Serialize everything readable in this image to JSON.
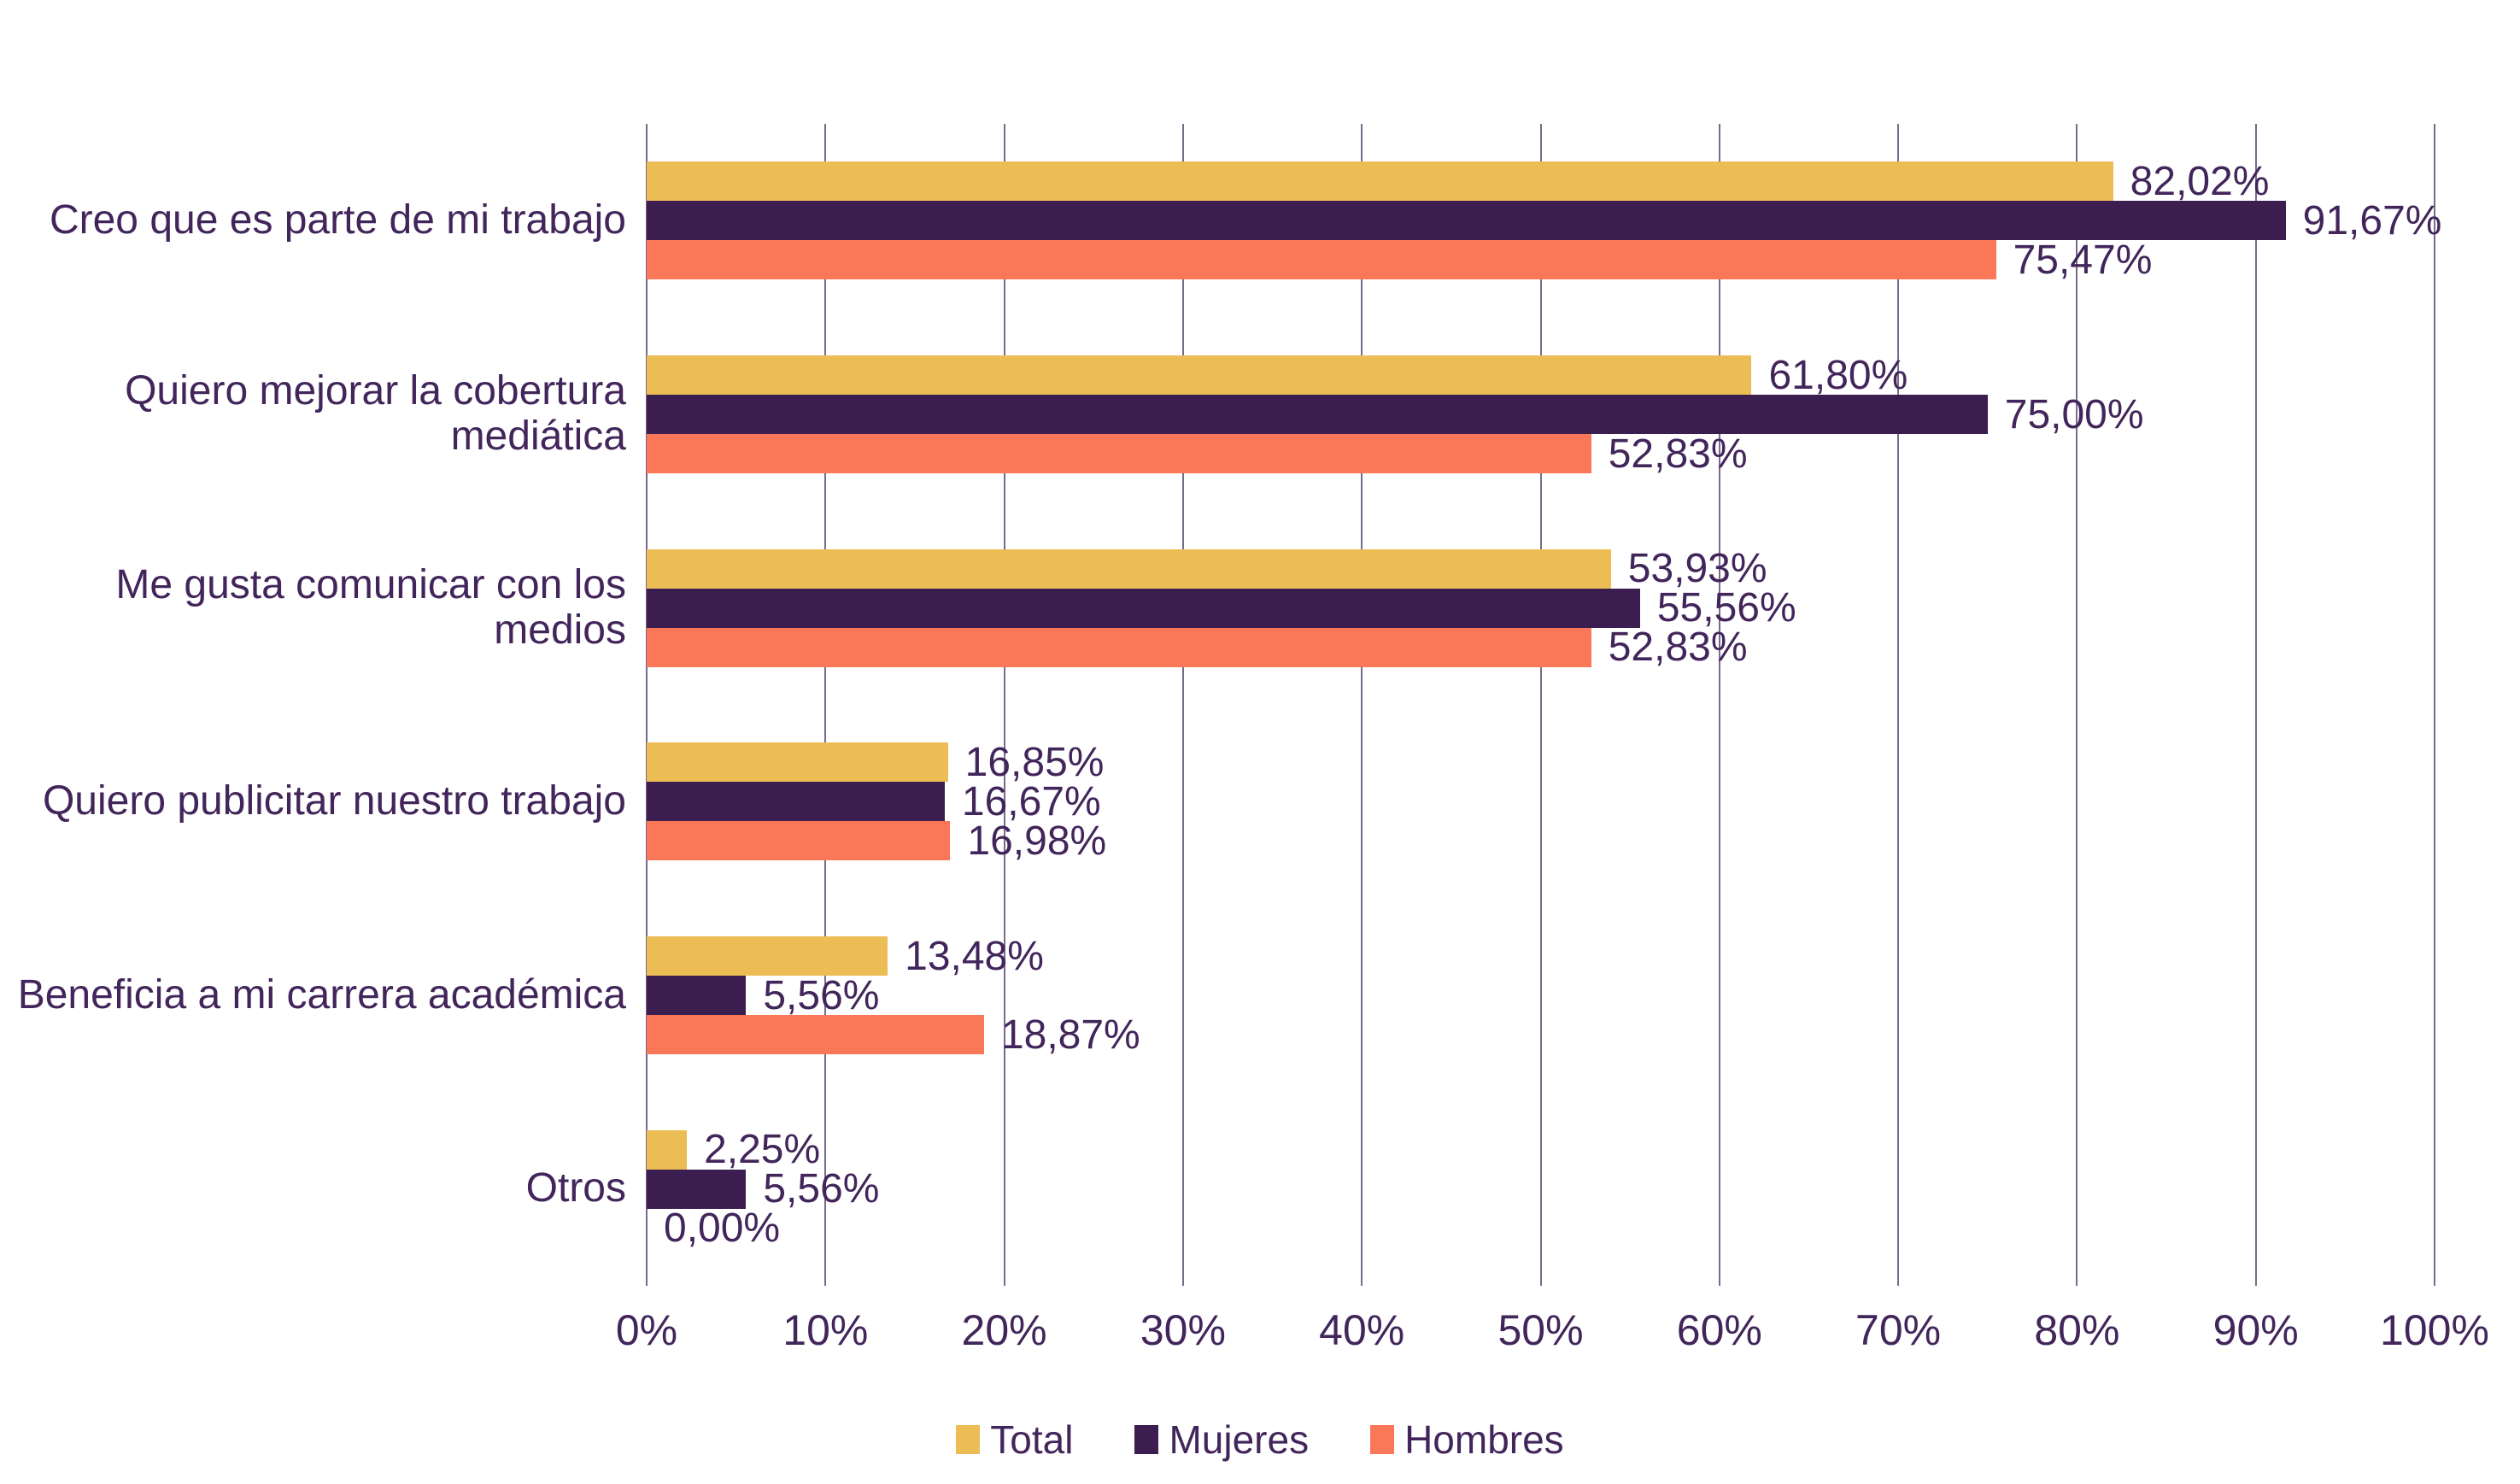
{
  "colors": {
    "total": "#ecbc55",
    "mujeres": "#3b1e4f",
    "hombres": "#fa7757",
    "text": "#42265b",
    "grid": "#5f5078",
    "background": "#ffffff"
  },
  "chart_data": {
    "type": "bar",
    "orientation": "horizontal",
    "title": "",
    "xlabel": "",
    "ylabel": "",
    "xlim": [
      0,
      100
    ],
    "x_tick_labels": [
      "0%",
      "10%",
      "20%",
      "30%",
      "40%",
      "50%",
      "60%",
      "70%",
      "80%",
      "90%",
      "100%"
    ],
    "grid": "vertical",
    "legend_position": "bottom-center",
    "categories": [
      "Creo que es parte de mi trabajo",
      "Quiero mejorar la cobertura mediática",
      "Me gusta comunicar con los medios",
      "Quiero publicitar nuestro trabajo",
      "Beneficia a mi carrera académica",
      "Otros"
    ],
    "series": [
      {
        "name": "Total",
        "color": "#ecbc55",
        "values": [
          82.02,
          61.8,
          53.93,
          16.85,
          13.48,
          2.25
        ]
      },
      {
        "name": "Mujeres",
        "color": "#3b1e4f",
        "values": [
          91.67,
          75.0,
          55.56,
          16.67,
          5.56,
          5.56
        ]
      },
      {
        "name": "Hombres",
        "color": "#fa7757",
        "values": [
          75.47,
          52.83,
          52.83,
          16.98,
          18.87,
          0.0
        ]
      }
    ]
  },
  "groups": [
    {
      "label": "Creo que es parte de mi trabajo",
      "bars": [
        {
          "series": "Total",
          "value": 82.02,
          "label": "82,02%"
        },
        {
          "series": "Mujeres",
          "value": 91.67,
          "label": "91,67%"
        },
        {
          "series": "Hombres",
          "value": 75.47,
          "label": "75,47%"
        }
      ]
    },
    {
      "label": "Quiero mejorar la cobertura mediática",
      "bars": [
        {
          "series": "Total",
          "value": 61.8,
          "label": "61,80%"
        },
        {
          "series": "Mujeres",
          "value": 75.0,
          "label": "75,00%"
        },
        {
          "series": "Hombres",
          "value": 52.83,
          "label": "52,83%"
        }
      ]
    },
    {
      "label": "Me gusta comunicar con los medios",
      "bars": [
        {
          "series": "Total",
          "value": 53.93,
          "label": "53,93%"
        },
        {
          "series": "Mujeres",
          "value": 55.56,
          "label": "55,56%"
        },
        {
          "series": "Hombres",
          "value": 52.83,
          "label": "52,83%"
        }
      ]
    },
    {
      "label": "Quiero publicitar nuestro trabajo",
      "bars": [
        {
          "series": "Total",
          "value": 16.85,
          "label": "16,85%"
        },
        {
          "series": "Mujeres",
          "value": 16.67,
          "label": "16,67%"
        },
        {
          "series": "Hombres",
          "value": 16.98,
          "label": "16,98%"
        }
      ]
    },
    {
      "label": "Beneficia a mi carrera académica",
      "bars": [
        {
          "series": "Total",
          "value": 13.48,
          "label": "13,48%"
        },
        {
          "series": "Mujeres",
          "value": 5.56,
          "label": "5,56%"
        },
        {
          "series": "Hombres",
          "value": 18.87,
          "label": "18,87%"
        }
      ]
    },
    {
      "label": "Otros",
      "bars": [
        {
          "series": "Total",
          "value": 2.25,
          "label": "2,25%"
        },
        {
          "series": "Mujeres",
          "value": 5.56,
          "label": "5,56%"
        },
        {
          "series": "Hombres",
          "value": 0.0,
          "label": "0,00%"
        }
      ]
    }
  ],
  "x_axis": {
    "ticks": [
      "0%",
      "10%",
      "20%",
      "30%",
      "40%",
      "50%",
      "60%",
      "70%",
      "80%",
      "90%",
      "100%"
    ]
  },
  "legend": {
    "items": [
      {
        "label": "Total",
        "color_key": "total"
      },
      {
        "label": "Mujeres",
        "color_key": "mujeres"
      },
      {
        "label": "Hombres",
        "color_key": "hombres"
      }
    ]
  }
}
